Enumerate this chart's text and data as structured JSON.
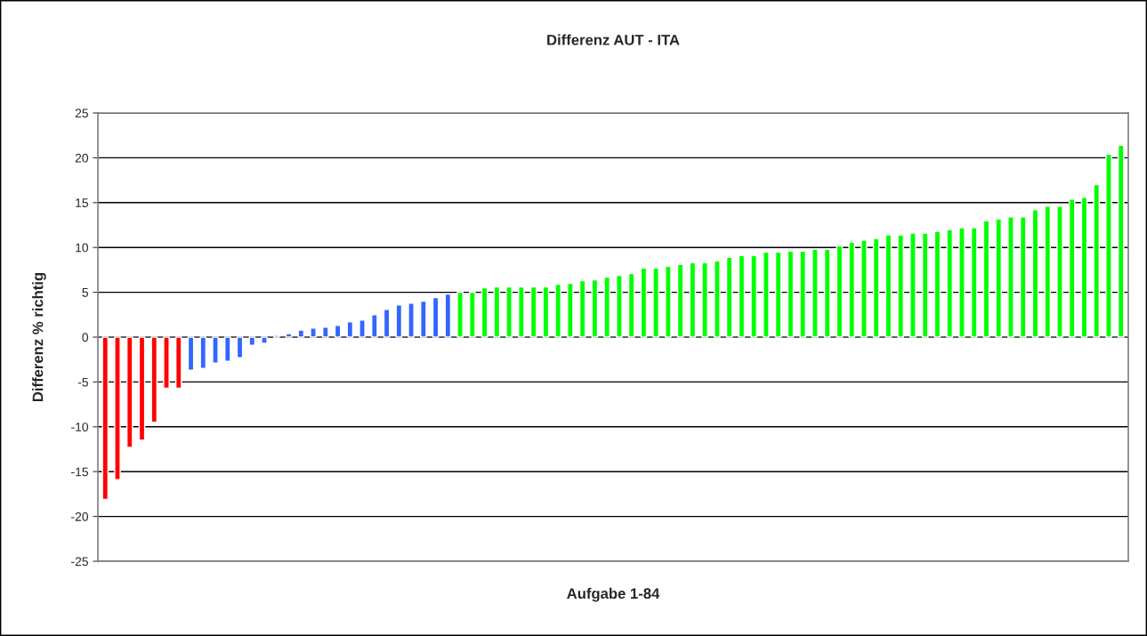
{
  "chart_data": {
    "type": "bar",
    "title": "Differenz AUT - ITA",
    "xlabel": "Aufgabe 1-84",
    "ylabel": "Differenz % richtig",
    "categories": [
      null,
      null,
      null,
      null,
      null,
      null,
      null,
      null,
      null,
      null,
      null,
      null,
      null,
      null,
      null,
      null,
      null,
      null,
      null,
      null,
      null,
      null,
      null,
      null,
      null,
      null,
      null,
      null,
      null,
      null,
      null,
      null,
      null,
      null,
      null,
      null,
      null,
      null,
      null,
      null,
      null,
      null,
      null,
      null,
      null,
      null,
      null,
      null,
      null,
      null,
      null,
      null,
      null,
      null,
      null,
      null,
      null,
      null,
      null,
      null,
      null,
      null,
      null,
      null,
      null,
      null,
      null,
      null,
      null,
      null,
      null,
      null,
      null,
      null,
      null,
      null,
      null,
      null,
      null,
      null,
      null,
      null,
      null,
      null
    ],
    "values": [
      -18.1,
      -15.9,
      -12.3,
      -11.5,
      -9.5,
      -5.7,
      -5.7,
      -3.7,
      -3.5,
      -2.9,
      -2.7,
      -2.3,
      -0.9,
      -0.7,
      0.2,
      0.4,
      0.8,
      1.0,
      1.1,
      1.3,
      1.7,
      1.9,
      2.5,
      3.1,
      3.6,
      3.8,
      4.0,
      4.4,
      4.8,
      5.0,
      5.0,
      5.5,
      5.6,
      5.6,
      5.6,
      5.6,
      5.6,
      5.9,
      6.0,
      6.3,
      6.4,
      6.7,
      6.9,
      7.1,
      7.7,
      7.7,
      7.9,
      8.1,
      8.3,
      8.3,
      8.5,
      8.9,
      9.1,
      9.1,
      9.5,
      9.5,
      9.6,
      9.6,
      9.8,
      9.8,
      10.2,
      10.6,
      10.8,
      11.0,
      11.4,
      11.4,
      11.6,
      11.6,
      11.8,
      12.0,
      12.2,
      12.2,
      13.0,
      13.2,
      13.4,
      13.4,
      14.2,
      14.6,
      14.6,
      15.4,
      15.6,
      17.0,
      20.4,
      21.4
    ],
    "colors": [
      "#ff0000",
      "#ff0000",
      "#ff0000",
      "#ff0000",
      "#ff0000",
      "#ff0000",
      "#ff0000",
      "#3366ff",
      "#3366ff",
      "#3366ff",
      "#3366ff",
      "#3366ff",
      "#3366ff",
      "#3366ff",
      "#3366ff",
      "#3366ff",
      "#3366ff",
      "#3366ff",
      "#3366ff",
      "#3366ff",
      "#3366ff",
      "#3366ff",
      "#3366ff",
      "#3366ff",
      "#3366ff",
      "#3366ff",
      "#3366ff",
      "#3366ff",
      "#3366ff",
      "#00ff00",
      "#00ff00",
      "#00ff00",
      "#00ff00",
      "#00ff00",
      "#00ff00",
      "#00ff00",
      "#00ff00",
      "#00ff00",
      "#00ff00",
      "#00ff00",
      "#00ff00",
      "#00ff00",
      "#00ff00",
      "#00ff00",
      "#00ff00",
      "#00ff00",
      "#00ff00",
      "#00ff00",
      "#00ff00",
      "#00ff00",
      "#00ff00",
      "#00ff00",
      "#00ff00",
      "#00ff00",
      "#00ff00",
      "#00ff00",
      "#00ff00",
      "#00ff00",
      "#00ff00",
      "#00ff00",
      "#00ff00",
      "#00ff00",
      "#00ff00",
      "#00ff00",
      "#00ff00",
      "#00ff00",
      "#00ff00",
      "#00ff00",
      "#00ff00",
      "#00ff00",
      "#00ff00",
      "#00ff00",
      "#00ff00",
      "#00ff00",
      "#00ff00",
      "#00ff00",
      "#00ff00",
      "#00ff00",
      "#00ff00",
      "#00ff00",
      "#00ff00",
      "#00ff00",
      "#00ff00",
      "#00ff00"
    ],
    "ylim": [
      -25,
      25
    ],
    "yticks": [
      -25,
      -20,
      -15,
      -10,
      -5,
      0,
      5,
      10,
      15,
      20,
      25
    ],
    "grid": "y",
    "legend": false
  }
}
